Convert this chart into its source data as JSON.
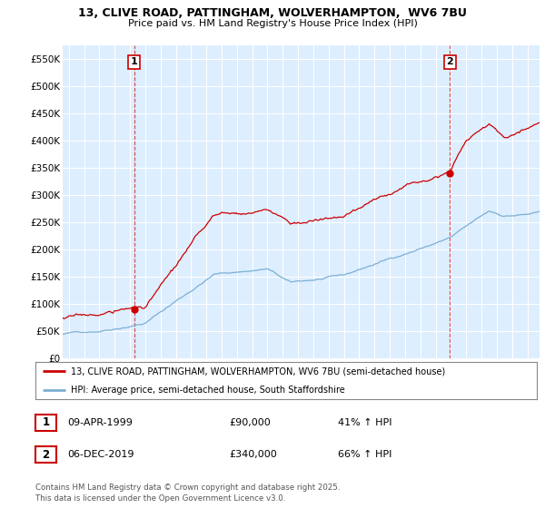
{
  "title1": "13, CLIVE ROAD, PATTINGHAM, WOLVERHAMPTON,  WV6 7BU",
  "title2": "Price paid vs. HM Land Registry's House Price Index (HPI)",
  "legend_line1": "13, CLIVE ROAD, PATTINGHAM, WOLVERHAMPTON, WV6 7BU (semi-detached house)",
  "legend_line2": "HPI: Average price, semi-detached house, South Staffordshire",
  "annotation1": {
    "num": "1",
    "date": "09-APR-1999",
    "price": "£90,000",
    "hpi": "41% ↑ HPI",
    "x_year": 1999.27
  },
  "annotation2": {
    "num": "2",
    "date": "06-DEC-2019",
    "price": "£340,000",
    "hpi": "66% ↑ HPI",
    "x_year": 2019.93
  },
  "footer": "Contains HM Land Registry data © Crown copyright and database right 2025.\nThis data is licensed under the Open Government Licence v3.0.",
  "price_color": "#cc0000",
  "hpi_color": "#7bafd4",
  "chart_bg": "#ddeeff",
  "background_color": "#ffffff",
  "ylim": [
    0,
    575000
  ],
  "xlim_start": 1994.6,
  "xlim_end": 2025.8,
  "yticks": [
    0,
    50000,
    100000,
    150000,
    200000,
    250000,
    300000,
    350000,
    400000,
    450000,
    500000,
    550000
  ],
  "sale1_price": 90000,
  "sale1_year": 1999.27,
  "sale2_price": 340000,
  "sale2_year": 2019.93
}
